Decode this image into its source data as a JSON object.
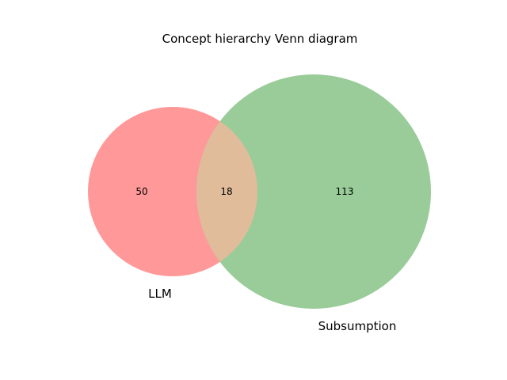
{
  "title": "Concept hierarchy Venn diagram",
  "sets": {
    "left": {
      "label": "LLM",
      "color": "#ff9999"
    },
    "right": {
      "label": "Subsumption",
      "color": "#99cc99"
    },
    "overlap_color": "#e0bc9a"
  },
  "counts": {
    "left_only": "50",
    "intersection": "18",
    "right_only": "113"
  }
}
